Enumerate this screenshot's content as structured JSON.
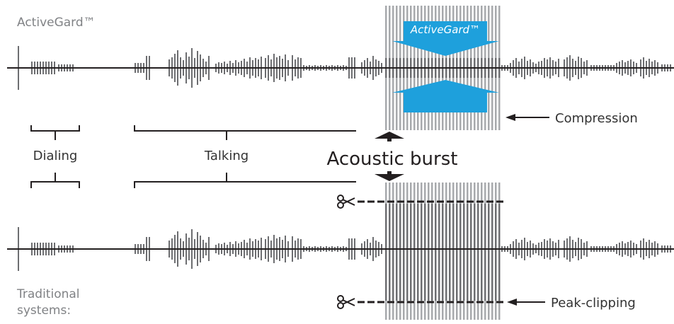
{
  "labels": {
    "top_system": "ActiveGard™",
    "bottom_system_line1": "Traditional",
    "bottom_system_line2": "systems:",
    "dialing": "Dialing",
    "talking": "Talking",
    "acoustic_burst": "Acoustic burst",
    "compression": "Compression",
    "peak_clipping": "Peak-clipping",
    "badge": "ActiveGard™"
  },
  "colors": {
    "waveform": "#6d6e71",
    "burst": "#a7a9ac",
    "accent": "#1ea0dc",
    "text": "#333333",
    "muted": "#808285",
    "line": "#231f20"
  },
  "icons": {
    "clip_marker": "scissors-icon",
    "burst_direction": "double-arrow-up-down-icon",
    "pointer": "arrow-left-icon"
  }
}
